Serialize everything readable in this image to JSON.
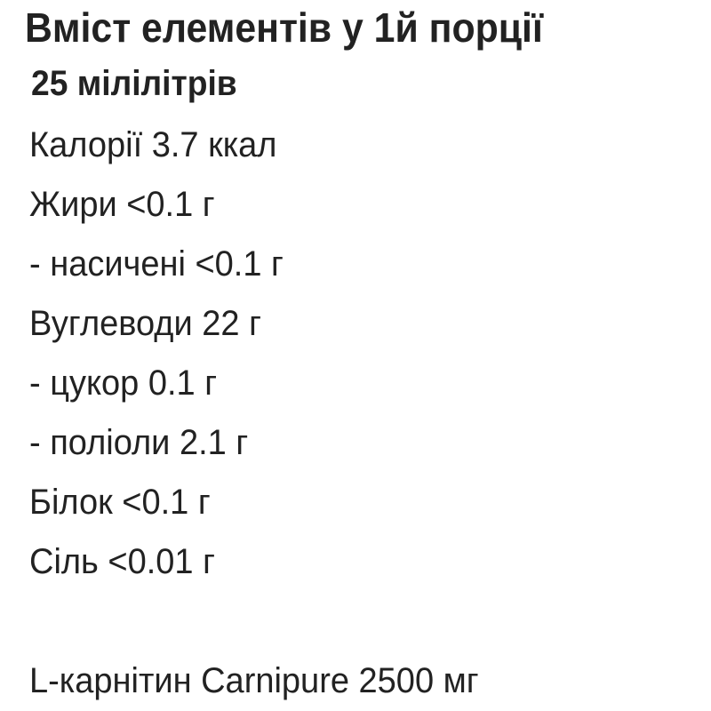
{
  "title": "Вміст елементів у 1й порції",
  "serving": "25 мілілітрів",
  "rows": [
    "Калорії 3.7 ккал",
    "Жири <0.1 г",
    "- насичені <0.1 г",
    "Вуглеводи 22 г",
    "- цукор 0.1 г",
    "- поліоли 2.1 г",
    "Білок <0.1 г",
    "Сіль <0.01 г"
  ],
  "footer": "L-карнітин Carnipure 2500 мг"
}
